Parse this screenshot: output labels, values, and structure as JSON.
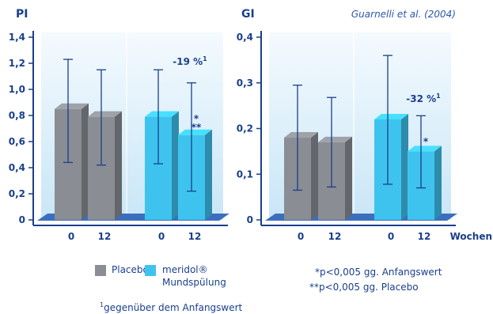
{
  "chart_data": [
    {
      "type": "bar",
      "title": "PI",
      "ylim": [
        0,
        1.4
      ],
      "yticks": [
        "0",
        "0,2",
        "0,4",
        "0,6",
        "0,8",
        "1,0",
        "1,2",
        "1,4"
      ],
      "categories": [
        "0",
        "12",
        "0",
        "12"
      ],
      "values": [
        0.85,
        0.79,
        0.79,
        0.65
      ],
      "error_bars": [
        [
          0.44,
          1.23
        ],
        [
          0.42,
          1.15
        ],
        [
          0.43,
          1.15
        ],
        [
          0.22,
          1.05
        ]
      ],
      "groups": [
        "Placebo",
        "Placebo",
        "meridol",
        "meridol"
      ],
      "marks": [
        "",
        "",
        "",
        "*\n**"
      ],
      "annotation": {
        "text": "-19 %",
        "sup": "1"
      },
      "grid": false
    },
    {
      "type": "bar",
      "title": "GI",
      "ylim": [
        0,
        0.4
      ],
      "yticks": [
        "0",
        "0,1",
        "0,2",
        "0,3",
        "0,4"
      ],
      "categories": [
        "0",
        "12",
        "0",
        "12"
      ],
      "values": [
        0.18,
        0.17,
        0.22,
        0.15
      ],
      "error_bars": [
        [
          0.065,
          0.295
        ],
        [
          0.072,
          0.268
        ],
        [
          0.078,
          0.36
        ],
        [
          0.07,
          0.228
        ]
      ],
      "groups": [
        "Placebo",
        "Placebo",
        "meridol",
        "meridol"
      ],
      "marks": [
        "",
        "",
        "",
        "*"
      ],
      "annotation": {
        "text": "-32 %",
        "sup": "1"
      },
      "xlabel": "Wochen",
      "grid": false
    }
  ],
  "source": "Guarnelli et al. (2004)",
  "legend": {
    "placebo": "Placebo",
    "meridol_line1": "meridol®",
    "meridol_line2": "Mundspülung",
    "footnote_sup": "1",
    "footnote": "gegenüber dem Anfangswert",
    "sig1": "*p<0,005 gg. Anfangswert",
    "sig2": "**p<0,005 gg. Placebo"
  },
  "colors": {
    "placebo": "#8a8d93",
    "meridol": "#3ec3ee",
    "panel": "#e4f2fb",
    "floor": "#3b6fbd",
    "text": "#1a3f8c"
  }
}
